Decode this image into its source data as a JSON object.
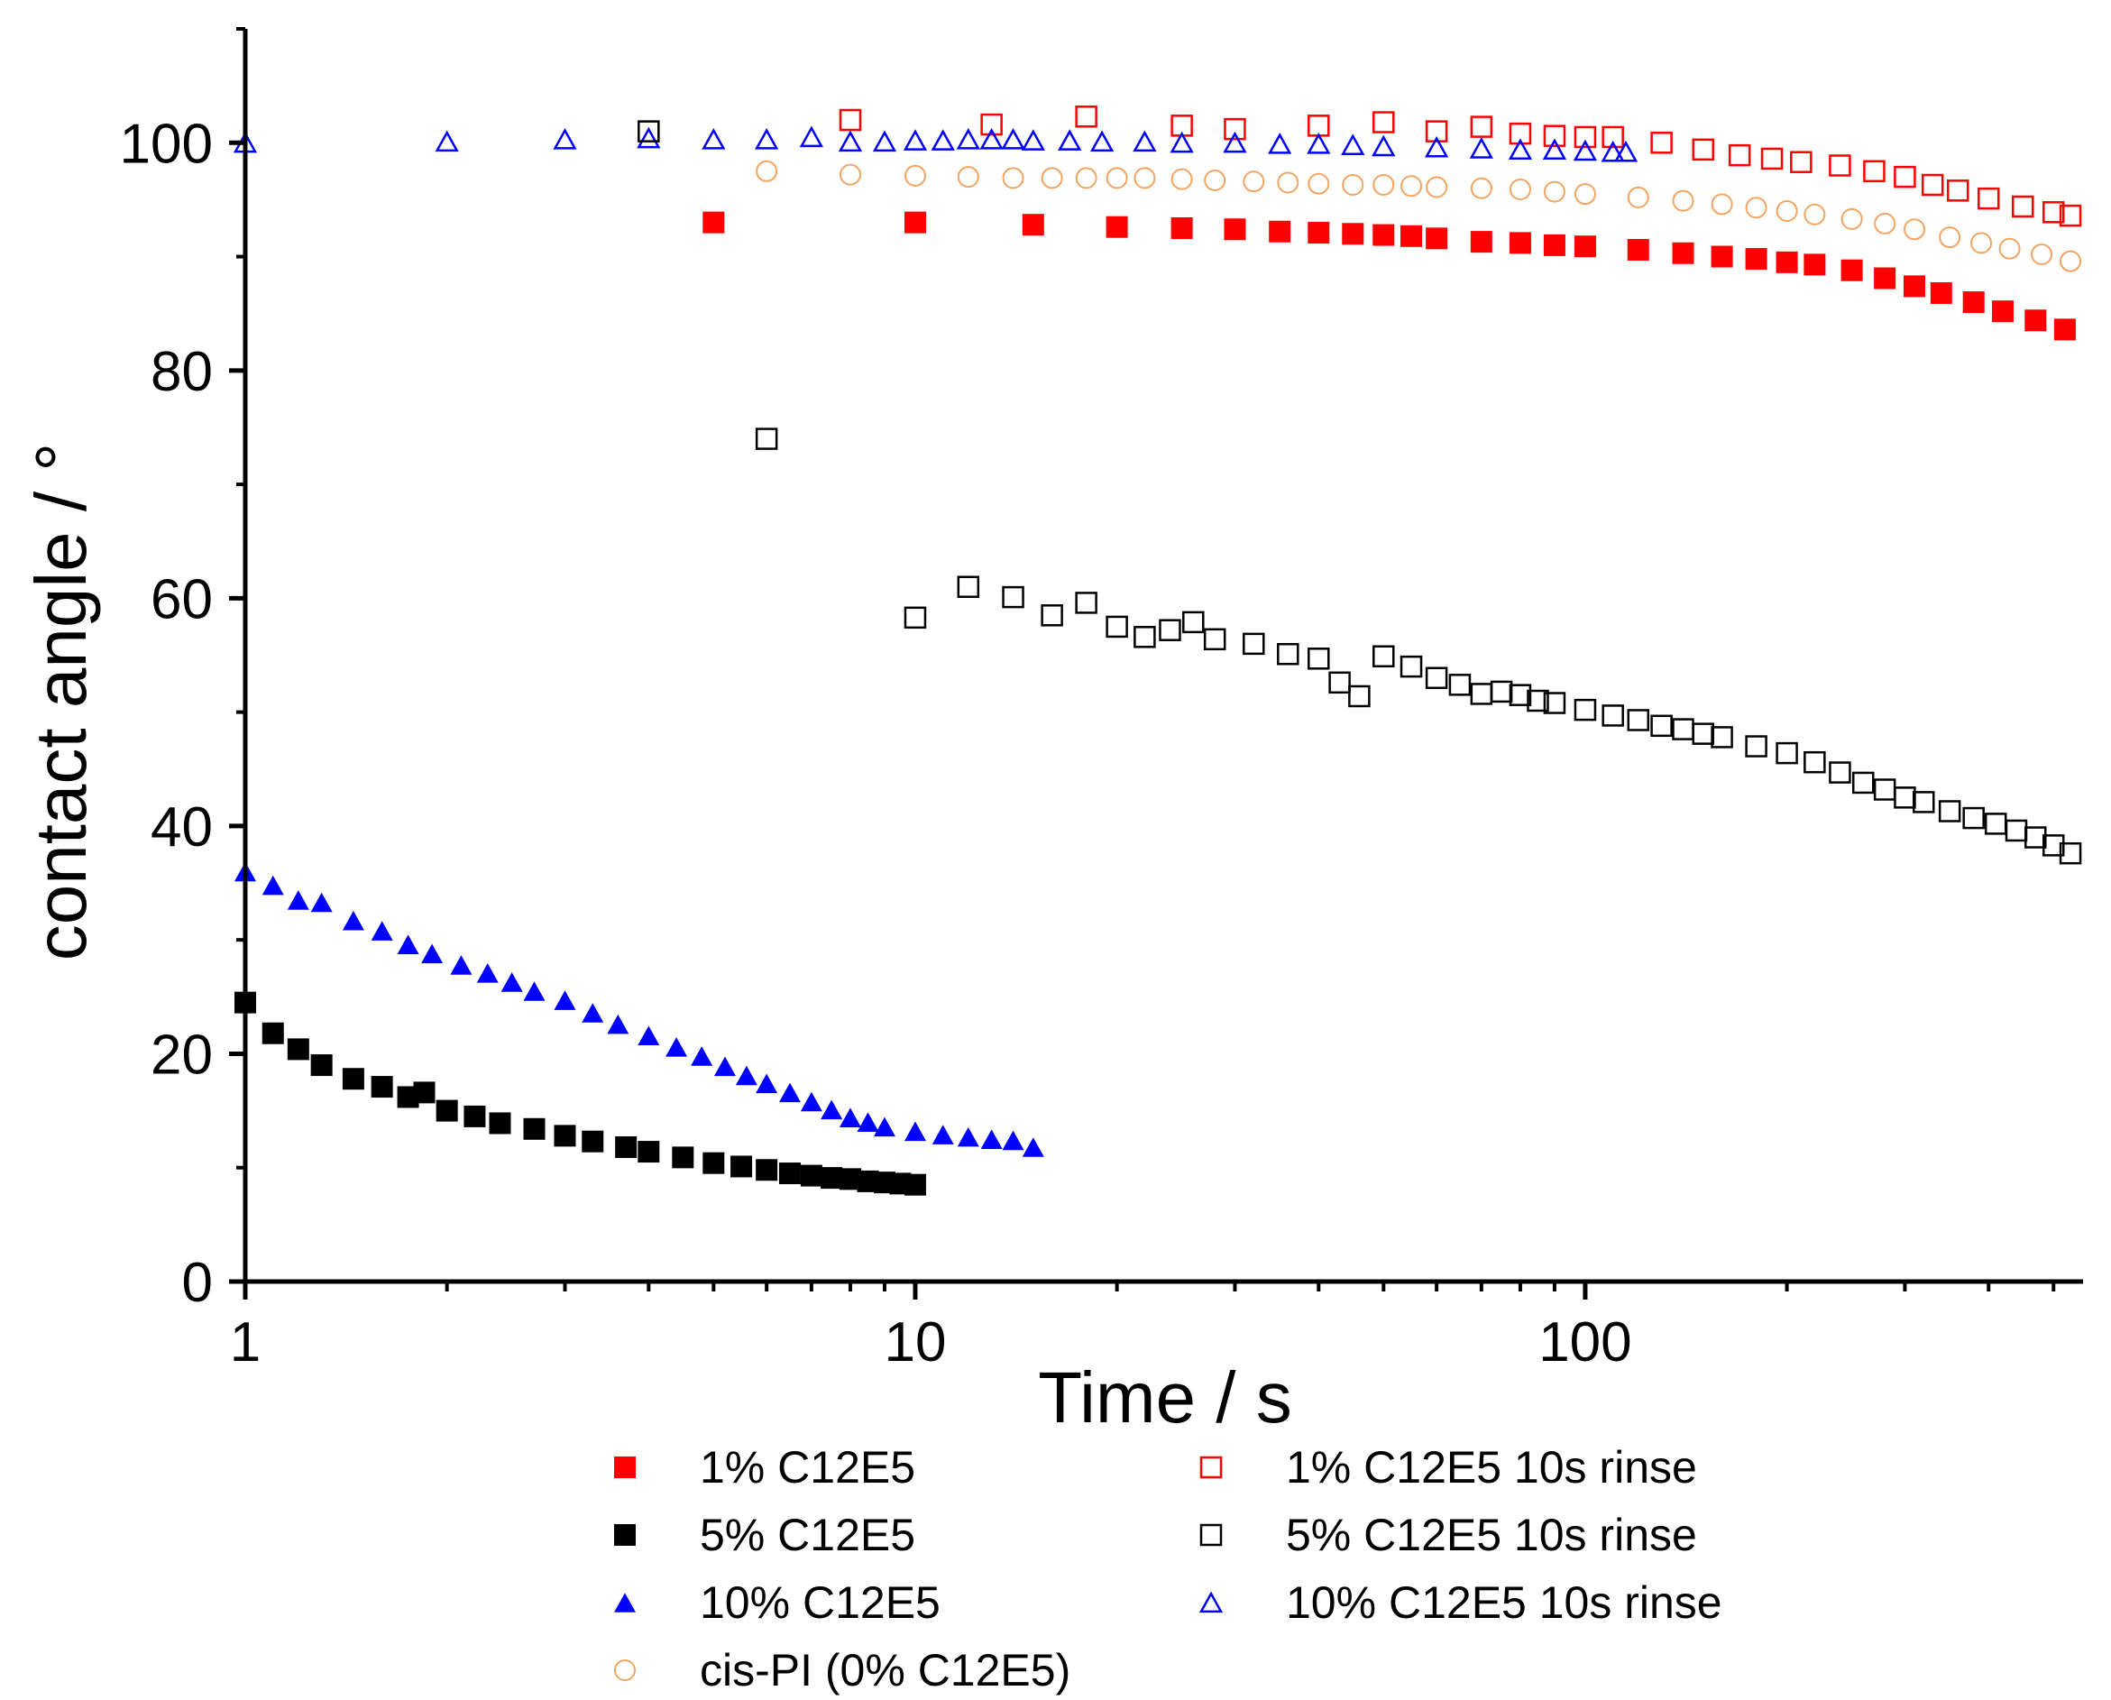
{
  "chart_data": {
    "type": "scatter",
    "xlabel": "Time / s",
    "ylabel": "contact angle / °",
    "xscale": "log",
    "xlim": [
      1,
      550
    ],
    "ylim": [
      0,
      110
    ],
    "xticks": [
      {
        "value": 1,
        "label": "1"
      },
      {
        "value": 10,
        "label": "10"
      },
      {
        "value": 100,
        "label": "100"
      }
    ],
    "yticks": [
      {
        "value": 0,
        "label": "0"
      },
      {
        "value": 20,
        "label": "20"
      },
      {
        "value": 40,
        "label": "40"
      },
      {
        "value": 60,
        "label": "60"
      },
      {
        "value": 80,
        "label": "80"
      },
      {
        "value": 100,
        "label": "100"
      }
    ],
    "legend_position": "below plot, two columns",
    "series": [
      {
        "name": "1% C12E5",
        "marker": "square",
        "filled": true,
        "color": "#ff0000",
        "points": [
          [
            5,
            93
          ],
          [
            10,
            93
          ],
          [
            15,
            92.8
          ],
          [
            20,
            92.6
          ],
          [
            25,
            92.5
          ],
          [
            30,
            92.4
          ],
          [
            35,
            92.2
          ],
          [
            40,
            92.1
          ],
          [
            45,
            92
          ],
          [
            50,
            91.9
          ],
          [
            55,
            91.8
          ],
          [
            60,
            91.6
          ],
          [
            70,
            91.3
          ],
          [
            80,
            91.2
          ],
          [
            90,
            91
          ],
          [
            100,
            90.9
          ],
          [
            120,
            90.6
          ],
          [
            140,
            90.3
          ],
          [
            160,
            90
          ],
          [
            180,
            89.8
          ],
          [
            200,
            89.5
          ],
          [
            220,
            89.3
          ],
          [
            250,
            88.8
          ],
          [
            280,
            88.1
          ],
          [
            310,
            87.4
          ],
          [
            340,
            86.8
          ],
          [
            380,
            86
          ],
          [
            420,
            85.2
          ],
          [
            470,
            84.4
          ],
          [
            520,
            83.6
          ]
        ]
      },
      {
        "name": "1% C12E5 10s rinse",
        "marker": "square",
        "filled": false,
        "color": "#ff0000",
        "points": [
          [
            8,
            102
          ],
          [
            13,
            101.6
          ],
          [
            18,
            102.3
          ],
          [
            25,
            101.5
          ],
          [
            30,
            101.2
          ],
          [
            40,
            101.5
          ],
          [
            50,
            101.8
          ],
          [
            60,
            101
          ],
          [
            70,
            101.4
          ],
          [
            80,
            100.8
          ],
          [
            90,
            100.6
          ],
          [
            100,
            100.5
          ],
          [
            110,
            100.5
          ],
          [
            130,
            100
          ],
          [
            150,
            99.4
          ],
          [
            170,
            98.9
          ],
          [
            190,
            98.6
          ],
          [
            210,
            98.3
          ],
          [
            240,
            98
          ],
          [
            270,
            97.5
          ],
          [
            300,
            97
          ],
          [
            330,
            96.3
          ],
          [
            360,
            95.8
          ],
          [
            400,
            95.1
          ],
          [
            450,
            94.4
          ],
          [
            500,
            93.9
          ],
          [
            530,
            93.6
          ]
        ]
      },
      {
        "name": "5% C12E5",
        "marker": "square",
        "filled": true,
        "color": "#000000",
        "points": [
          [
            1,
            24.5
          ],
          [
            1.1,
            21.8
          ],
          [
            1.2,
            20.4
          ],
          [
            1.3,
            19
          ],
          [
            1.45,
            17.8
          ],
          [
            1.6,
            17.1
          ],
          [
            1.75,
            16.2
          ],
          [
            1.85,
            16.6
          ],
          [
            2,
            15
          ],
          [
            2.2,
            14.5
          ],
          [
            2.4,
            13.9
          ],
          [
            2.7,
            13.4
          ],
          [
            3,
            12.8
          ],
          [
            3.3,
            12.3
          ],
          [
            3.7,
            11.8
          ],
          [
            4,
            11.4
          ],
          [
            4.5,
            10.9
          ],
          [
            5,
            10.4
          ],
          [
            5.5,
            10.1
          ],
          [
            6,
            9.8
          ],
          [
            6.5,
            9.5
          ],
          [
            7,
            9.3
          ],
          [
            7.5,
            9.1
          ],
          [
            8,
            9
          ],
          [
            8.5,
            8.8
          ],
          [
            9,
            8.7
          ],
          [
            9.5,
            8.6
          ],
          [
            10,
            8.5
          ]
        ]
      },
      {
        "name": "5% C12E5 10s rinse",
        "marker": "square",
        "filled": false,
        "color": "#000000",
        "points": [
          [
            4,
            101
          ],
          [
            6,
            74
          ],
          [
            10,
            58.3
          ],
          [
            12,
            61
          ],
          [
            14,
            60.1
          ],
          [
            16,
            58.5
          ],
          [
            18,
            59.6
          ],
          [
            20,
            57.5
          ],
          [
            22,
            56.6
          ],
          [
            24,
            57.2
          ],
          [
            26,
            57.9
          ],
          [
            28,
            56.4
          ],
          [
            32,
            56
          ],
          [
            36,
            55.1
          ],
          [
            40,
            54.7
          ],
          [
            43,
            52.6
          ],
          [
            46,
            51.4
          ],
          [
            50,
            54.9
          ],
          [
            55,
            54
          ],
          [
            60,
            53
          ],
          [
            65,
            52.4
          ],
          [
            70,
            51.6
          ],
          [
            75,
            51.8
          ],
          [
            80,
            51.5
          ],
          [
            85,
            51
          ],
          [
            90,
            50.8
          ],
          [
            100,
            50.2
          ],
          [
            110,
            49.7
          ],
          [
            120,
            49.3
          ],
          [
            130,
            48.8
          ],
          [
            140,
            48.5
          ],
          [
            150,
            48.1
          ],
          [
            160,
            47.8
          ],
          [
            180,
            47
          ],
          [
            200,
            46.4
          ],
          [
            220,
            45.6
          ],
          [
            240,
            44.7
          ],
          [
            260,
            43.8
          ],
          [
            280,
            43.2
          ],
          [
            300,
            42.5
          ],
          [
            320,
            42.1
          ],
          [
            350,
            41.3
          ],
          [
            380,
            40.7
          ],
          [
            410,
            40.2
          ],
          [
            440,
            39.6
          ],
          [
            470,
            39
          ],
          [
            500,
            38.3
          ],
          [
            530,
            37.6
          ]
        ]
      },
      {
        "name": "10% C12E5",
        "marker": "triangle",
        "filled": true,
        "color": "#0000ff",
        "points": [
          [
            1,
            36
          ],
          [
            1.1,
            34.8
          ],
          [
            1.2,
            33.5
          ],
          [
            1.3,
            33.3
          ],
          [
            1.45,
            31.7
          ],
          [
            1.6,
            30.8
          ],
          [
            1.75,
            29.6
          ],
          [
            1.9,
            28.8
          ],
          [
            2.1,
            27.8
          ],
          [
            2.3,
            27.1
          ],
          [
            2.5,
            26.3
          ],
          [
            2.7,
            25.5
          ],
          [
            3,
            24.7
          ],
          [
            3.3,
            23.6
          ],
          [
            3.6,
            22.6
          ],
          [
            4,
            21.6
          ],
          [
            4.4,
            20.6
          ],
          [
            4.8,
            19.8
          ],
          [
            5.2,
            18.9
          ],
          [
            5.6,
            18.1
          ],
          [
            6,
            17.4
          ],
          [
            6.5,
            16.6
          ],
          [
            7,
            15.8
          ],
          [
            7.5,
            15.1
          ],
          [
            8,
            14.4
          ],
          [
            8.5,
            14
          ],
          [
            9,
            13.6
          ],
          [
            10,
            13.2
          ],
          [
            11,
            12.9
          ],
          [
            12,
            12.7
          ],
          [
            13,
            12.5
          ],
          [
            14,
            12.4
          ],
          [
            15,
            11.8
          ]
        ]
      },
      {
        "name": "10% C12E5 10s rinse",
        "marker": "triangle",
        "filled": false,
        "color": "#0000ff",
        "points": [
          [
            1,
            100
          ],
          [
            2,
            100.1
          ],
          [
            3,
            100.3
          ],
          [
            4,
            100.4
          ],
          [
            5,
            100.3
          ],
          [
            6,
            100.3
          ],
          [
            7,
            100.5
          ],
          [
            8,
            100.1
          ],
          [
            9,
            100.1
          ],
          [
            10,
            100.2
          ],
          [
            11,
            100.2
          ],
          [
            12,
            100.3
          ],
          [
            13,
            100.3
          ],
          [
            14,
            100.3
          ],
          [
            15,
            100.2
          ],
          [
            17,
            100.2
          ],
          [
            19,
            100.1
          ],
          [
            22,
            100.1
          ],
          [
            25,
            100
          ],
          [
            30,
            100
          ],
          [
            35,
            99.9
          ],
          [
            40,
            99.9
          ],
          [
            45,
            99.8
          ],
          [
            50,
            99.7
          ],
          [
            60,
            99.6
          ],
          [
            70,
            99.5
          ],
          [
            80,
            99.4
          ],
          [
            90,
            99.4
          ],
          [
            100,
            99.3
          ],
          [
            110,
            99.2
          ],
          [
            115,
            99.2
          ]
        ]
      },
      {
        "name": "cis-PI (0% C12E5)",
        "marker": "circle",
        "filled": false,
        "color": "#f4a460",
        "points": [
          [
            6,
            97.5
          ],
          [
            8,
            97.2
          ],
          [
            10,
            97.1
          ],
          [
            12,
            97
          ],
          [
            14,
            96.9
          ],
          [
            16,
            96.9
          ],
          [
            18,
            96.9
          ],
          [
            20,
            96.9
          ],
          [
            22,
            96.9
          ],
          [
            25,
            96.8
          ],
          [
            28,
            96.7
          ],
          [
            32,
            96.6
          ],
          [
            36,
            96.5
          ],
          [
            40,
            96.4
          ],
          [
            45,
            96.3
          ],
          [
            50,
            96.3
          ],
          [
            55,
            96.2
          ],
          [
            60,
            96.1
          ],
          [
            70,
            96
          ],
          [
            80,
            95.9
          ],
          [
            90,
            95.7
          ],
          [
            100,
            95.5
          ],
          [
            120,
            95.2
          ],
          [
            140,
            94.9
          ],
          [
            160,
            94.6
          ],
          [
            180,
            94.3
          ],
          [
            200,
            94
          ],
          [
            220,
            93.7
          ],
          [
            250,
            93.3
          ],
          [
            280,
            92.9
          ],
          [
            310,
            92.4
          ],
          [
            350,
            91.7
          ],
          [
            390,
            91.2
          ],
          [
            430,
            90.7
          ],
          [
            480,
            90.2
          ],
          [
            530,
            89.6
          ]
        ]
      }
    ]
  }
}
